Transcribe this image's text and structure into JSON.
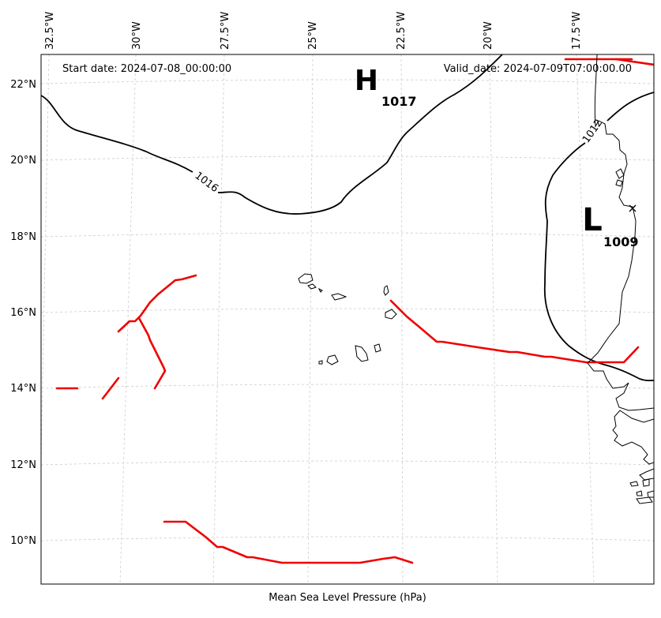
{
  "header": {
    "start_date": "Start date: 2024-07-08_00:00:00",
    "valid_date": "Valid_date: 2024-07-09T07:00:00.00"
  },
  "footer": {
    "title": "Mean Sea Level Pressure (hPa)"
  },
  "lon_labels": [
    "32.5°W",
    "30°W",
    "27.5°W",
    "25°W",
    "22.5°W",
    "20°W",
    "17.5°W"
  ],
  "lat_labels": [
    "22°N",
    "20°N",
    "18°N",
    "16°N",
    "14°N",
    "12°N",
    "10°N"
  ],
  "pressure_centers": [
    {
      "letter": "H",
      "value": "1017"
    },
    {
      "letter": "L",
      "value": "1009"
    }
  ],
  "isobar_labels": [
    "1016",
    "1012"
  ],
  "colors": {
    "isobar": "#000000",
    "trough": "#ee0000",
    "grid": "#cccccc"
  }
}
